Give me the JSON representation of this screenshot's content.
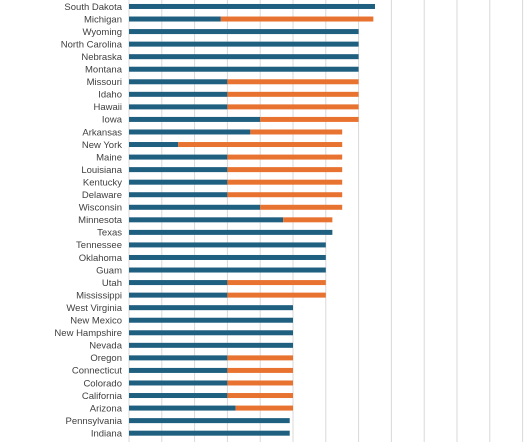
{
  "chart_data": {
    "type": "bar",
    "orientation": "horizontal",
    "stacked": true,
    "grid": true,
    "categories": [
      "South Dakota",
      "Michigan",
      "Wyoming",
      "North Carolina",
      "Nebraska",
      "Montana",
      "Missouri",
      "Idaho",
      "Hawaii",
      "Iowa",
      "Arkansas",
      "New York",
      "Maine",
      "Louisiana",
      "Kentucky",
      "Delaware",
      "Wisconsin",
      "Minnesota",
      "Texas",
      "Tennessee",
      "Oklahoma",
      "Guam",
      "Utah",
      "Mississippi",
      "West Virginia",
      "New Mexico",
      "New Hampshire",
      "Nevada",
      "Oregon",
      "Connecticut",
      "Colorado",
      "California",
      "Arizona",
      "Pennsylvania",
      "Indiana"
    ],
    "series": [
      {
        "values": [
          15,
          5.6,
          14,
          14,
          14,
          14,
          6,
          6,
          6,
          8,
          7.4,
          3,
          6,
          6,
          6,
          6,
          8,
          9.4,
          12.4,
          12,
          12,
          12,
          6,
          6,
          10,
          10,
          10,
          10,
          6,
          6,
          6,
          6,
          6.5,
          9.8,
          9.8
        ]
      },
      {
        "values": [
          0,
          9.3,
          0,
          0,
          0,
          0,
          8,
          8,
          8,
          6,
          5.6,
          10,
          7,
          7,
          7,
          7,
          5,
          3,
          0,
          0,
          0,
          0,
          6,
          6,
          0,
          0,
          0,
          0,
          4,
          4,
          4,
          4,
          3.5,
          0,
          0
        ]
      }
    ],
    "colors": [
      "#1f5f80",
      "#e87330"
    ],
    "xlim": [
      0,
      25
    ]
  }
}
